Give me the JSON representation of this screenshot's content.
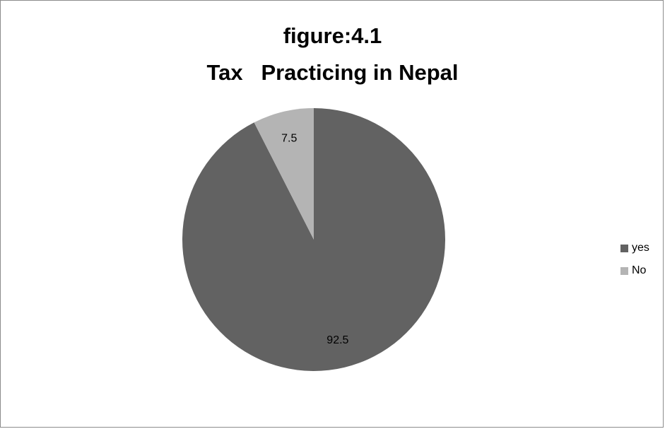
{
  "chart_data": {
    "type": "pie",
    "title_lines": [
      "figure:4.1",
      "Tax   Practicing in Nepal"
    ],
    "categories": [
      "yes",
      "No"
    ],
    "values": [
      92.5,
      7.5
    ],
    "data_labels": [
      "92.5",
      "7.5"
    ],
    "colors": [
      "#626262",
      "#b4b4b4"
    ],
    "legend_position": "right",
    "start_angle_deg": 0,
    "direction": "clockwise"
  }
}
